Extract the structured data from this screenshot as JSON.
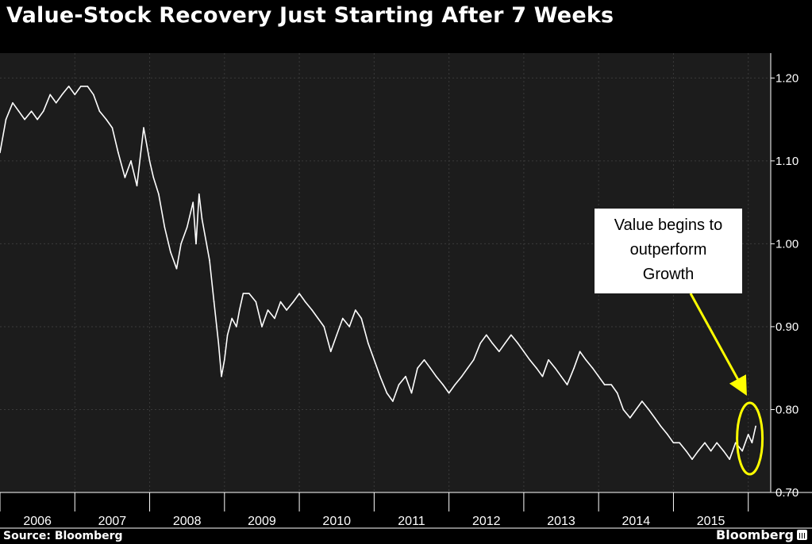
{
  "title": "Value-Stock Recovery Just Starting After 7 Weeks",
  "source": "Source: Bloomberg",
  "brand": "Bloomberg",
  "colors": {
    "background": "#000000",
    "chart_background": "#1c1c1c",
    "line": "#ffffff",
    "annotation": "#ffff00",
    "grid": "#3a3a3a"
  },
  "annotation": {
    "lines": [
      "Value begins to",
      "outperform",
      "Growth"
    ]
  },
  "chart_data": {
    "type": "line",
    "title": "Value-Stock Recovery Just Starting After 7 Weeks",
    "xlabel": "",
    "ylabel": "",
    "grid": true,
    "y_axis_side": "right",
    "ylim": [
      0.7,
      1.23
    ],
    "xlim": [
      2006.0,
      2016.3
    ],
    "x_tick_labels": [
      "2006",
      "2007",
      "2008",
      "2009",
      "2010",
      "2011",
      "2012",
      "2013",
      "2014",
      "2015"
    ],
    "y_ticks": [
      0.7,
      0.8,
      0.9,
      1.0,
      1.1,
      1.2
    ],
    "y_tick_labels": [
      "0.70",
      "0.80",
      "0.90",
      "1.00",
      "1.10",
      "1.20"
    ],
    "series": [
      {
        "x": [
          2006.0,
          2006.08,
          2006.17,
          2006.25,
          2006.33,
          2006.42,
          2006.5,
          2006.58,
          2006.67,
          2006.75,
          2006.83,
          2006.92,
          2007.0,
          2007.08,
          2007.17,
          2007.25,
          2007.33,
          2007.42,
          2007.5,
          2007.58,
          2007.67,
          2007.75,
          2007.83,
          2007.92,
          2008.0,
          2008.05,
          2008.12,
          2008.2,
          2008.28,
          2008.36,
          2008.42,
          2008.5,
          2008.58,
          2008.62,
          2008.66,
          2008.7,
          2008.74,
          2008.8,
          2008.86,
          2008.92,
          2008.96,
          2009.0,
          2009.04,
          2009.1,
          2009.16,
          2009.2,
          2009.25,
          2009.33,
          2009.42,
          2009.5,
          2009.58,
          2009.67,
          2009.75,
          2009.83,
          2009.92,
          2010.0,
          2010.08,
          2010.17,
          2010.25,
          2010.33,
          2010.42,
          2010.5,
          2010.58,
          2010.67,
          2010.75,
          2010.83,
          2010.92,
          2011.0,
          2011.08,
          2011.17,
          2011.25,
          2011.33,
          2011.42,
          2011.5,
          2011.58,
          2011.67,
          2011.75,
          2011.83,
          2011.92,
          2012.0,
          2012.08,
          2012.17,
          2012.25,
          2012.33,
          2012.42,
          2012.5,
          2012.58,
          2012.67,
          2012.75,
          2012.83,
          2012.92,
          2013.0,
          2013.08,
          2013.17,
          2013.25,
          2013.33,
          2013.42,
          2013.5,
          2013.58,
          2013.67,
          2013.75,
          2013.83,
          2013.92,
          2014.0,
          2014.08,
          2014.17,
          2014.25,
          2014.33,
          2014.42,
          2014.5,
          2014.58,
          2014.67,
          2014.75,
          2014.83,
          2014.92,
          2015.0,
          2015.08,
          2015.17,
          2015.25,
          2015.33,
          2015.42,
          2015.5,
          2015.58,
          2015.67,
          2015.75,
          2015.83,
          2015.92,
          2016.0,
          2016.05,
          2016.1
        ],
        "y": [
          1.11,
          1.15,
          1.17,
          1.16,
          1.15,
          1.16,
          1.15,
          1.16,
          1.18,
          1.17,
          1.18,
          1.19,
          1.18,
          1.19,
          1.19,
          1.18,
          1.16,
          1.15,
          1.14,
          1.11,
          1.08,
          1.1,
          1.07,
          1.14,
          1.1,
          1.08,
          1.06,
          1.02,
          0.99,
          0.97,
          1.0,
          1.02,
          1.05,
          1.0,
          1.06,
          1.03,
          1.01,
          0.98,
          0.93,
          0.88,
          0.84,
          0.86,
          0.89,
          0.91,
          0.9,
          0.92,
          0.94,
          0.94,
          0.93,
          0.9,
          0.92,
          0.91,
          0.93,
          0.92,
          0.93,
          0.94,
          0.93,
          0.92,
          0.91,
          0.9,
          0.87,
          0.89,
          0.91,
          0.9,
          0.92,
          0.91,
          0.88,
          0.86,
          0.84,
          0.82,
          0.81,
          0.83,
          0.84,
          0.82,
          0.85,
          0.86,
          0.85,
          0.84,
          0.83,
          0.82,
          0.83,
          0.84,
          0.85,
          0.86,
          0.88,
          0.89,
          0.88,
          0.87,
          0.88,
          0.89,
          0.88,
          0.87,
          0.86,
          0.85,
          0.84,
          0.86,
          0.85,
          0.84,
          0.83,
          0.85,
          0.87,
          0.86,
          0.85,
          0.84,
          0.83,
          0.83,
          0.82,
          0.8,
          0.79,
          0.8,
          0.81,
          0.8,
          0.79,
          0.78,
          0.77,
          0.76,
          0.76,
          0.75,
          0.74,
          0.75,
          0.76,
          0.75,
          0.76,
          0.75,
          0.74,
          0.76,
          0.75,
          0.77,
          0.76,
          0.78
        ]
      }
    ],
    "highlight": {
      "x": 2016.02,
      "y": 0.765,
      "shape": "ellipse"
    }
  }
}
